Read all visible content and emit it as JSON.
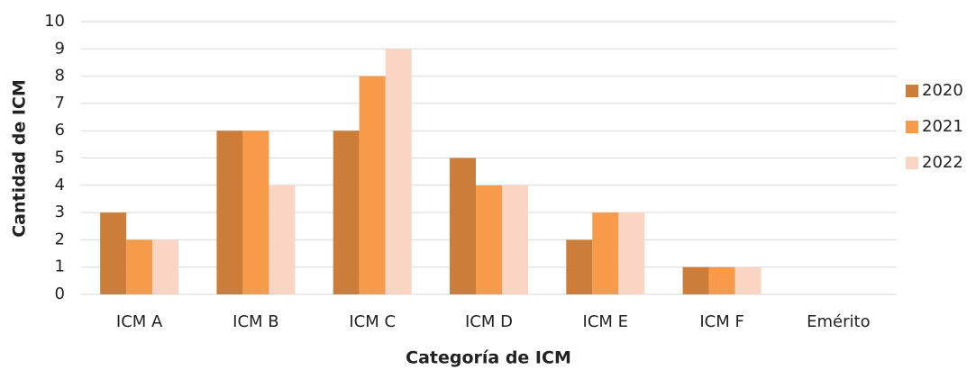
{
  "chart_data": {
    "type": "bar",
    "x_label": "Categoría de ICM",
    "y_label": "Cantidad de ICM",
    "categories": [
      "ICM A",
      "ICM B",
      "ICM C",
      "ICM D",
      "ICM E",
      "ICM F",
      "Emérito"
    ],
    "series": [
      {
        "name": "2020",
        "color": "#cd7d3a",
        "values": [
          3,
          6,
          6,
          5,
          2,
          1,
          0
        ]
      },
      {
        "name": "2021",
        "color": "#f79a4a",
        "values": [
          2,
          6,
          8,
          4,
          3,
          1,
          0
        ]
      },
      {
        "name": "2022",
        "color": "#fad5c3",
        "values": [
          2,
          4,
          9,
          4,
          3,
          1,
          0
        ]
      }
    ],
    "ylim": [
      0,
      10
    ],
    "yticks": [
      0,
      1,
      2,
      3,
      4,
      5,
      6,
      7,
      8,
      9,
      10
    ],
    "grid": true,
    "legend": "right"
  }
}
